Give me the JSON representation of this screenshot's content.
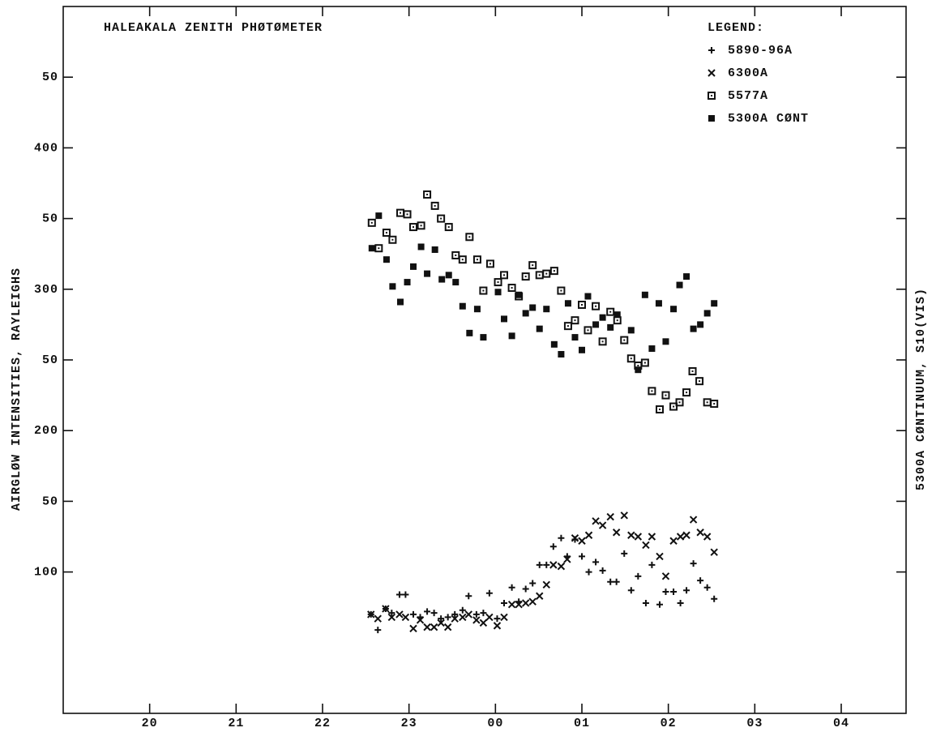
{
  "chart_data": {
    "type": "scatter",
    "title": "HALEAKALA ZENITH PHØTØMETER",
    "y_label": "AIRGLØW INTENSITIES, RAYLEIGHS",
    "y2_label": "5300A CØNTINUUM, S10(VIS)",
    "legend_title": "LEGEND:",
    "legend": "top-right",
    "xlim": [
      19,
      28.75
    ],
    "ylim": [
      0,
      500
    ],
    "xticks": [
      20,
      21,
      22,
      23,
      {
        "value": 24,
        "label": "00"
      },
      {
        "value": 25,
        "label": "01"
      },
      {
        "value": 26,
        "label": "02"
      },
      {
        "value": 27,
        "label": "03"
      },
      {
        "value": 28,
        "label": "04"
      }
    ],
    "yticks": [
      100,
      {
        "value": 150,
        "label": "50"
      },
      200,
      {
        "value": 250,
        "label": "50"
      },
      300,
      {
        "value": 350,
        "label": "50"
      },
      400,
      {
        "value": 450,
        "label": "50"
      }
    ],
    "series": [
      {
        "name": "5890-96A",
        "color": "#111111",
        "marker": "plus",
        "x": [
          22.56,
          22.64,
          22.73,
          22.8,
          22.89,
          22.96,
          23.05,
          23.13,
          23.21,
          23.29,
          23.37,
          23.45,
          23.53,
          23.62,
          23.69,
          23.78,
          23.86,
          23.93,
          24.02,
          24.1,
          24.19,
          24.27,
          24.35,
          24.43,
          24.51,
          24.59,
          24.67,
          24.76,
          24.83,
          24.92,
          25.0,
          25.08,
          25.16,
          25.24,
          25.33,
          25.4,
          25.49,
          25.57,
          25.65,
          25.74,
          25.81,
          25.9,
          25.97,
          26.06,
          26.14,
          26.21,
          26.29,
          26.37,
          26.45,
          26.53
        ],
        "values": [
          70,
          59,
          74,
          71,
          84,
          84,
          70,
          68,
          72,
          71,
          67,
          68,
          70,
          73,
          83,
          70,
          71,
          85,
          67,
          78,
          89,
          79,
          88,
          92,
          105,
          105,
          118,
          124,
          111,
          123,
          111,
          100,
          107,
          101,
          93,
          93,
          113,
          87,
          97,
          78,
          105,
          77,
          86,
          86,
          78,
          87,
          106,
          94,
          89,
          81
        ]
      },
      {
        "name": "6300A",
        "color": "#111111",
        "marker": "cross",
        "x": [
          22.56,
          22.64,
          22.73,
          22.8,
          22.89,
          22.96,
          23.05,
          23.13,
          23.21,
          23.29,
          23.37,
          23.45,
          23.53,
          23.62,
          23.69,
          23.78,
          23.86,
          23.93,
          24.02,
          24.1,
          24.19,
          24.27,
          24.35,
          24.43,
          24.51,
          24.59,
          24.67,
          24.76,
          24.83,
          24.92,
          25.0,
          25.08,
          25.16,
          25.24,
          25.33,
          25.4,
          25.49,
          25.57,
          25.65,
          25.74,
          25.81,
          25.9,
          25.97,
          26.06,
          26.14,
          26.21,
          26.29,
          26.37,
          26.45,
          26.53
        ],
        "values": [
          70,
          67,
          74,
          68,
          70,
          68,
          60,
          66,
          61,
          61,
          64,
          61,
          67,
          68,
          70,
          66,
          64,
          68,
          62,
          68,
          77,
          77,
          78,
          79,
          83,
          91,
          105,
          104,
          109,
          124,
          122,
          126,
          136,
          133,
          139,
          128,
          140,
          126,
          125,
          119,
          125,
          111,
          97,
          122,
          125,
          126,
          137,
          128,
          125,
          114
        ]
      },
      {
        "name": "5577A",
        "color": "#111111",
        "marker": "square-open",
        "x": [
          22.57,
          22.65,
          22.74,
          22.81,
          22.9,
          22.98,
          23.05,
          23.14,
          23.21,
          23.3,
          23.37,
          23.46,
          23.54,
          23.62,
          23.7,
          23.79,
          23.86,
          23.94,
          24.03,
          24.1,
          24.19,
          24.27,
          24.35,
          24.43,
          24.51,
          24.59,
          24.68,
          24.76,
          24.84,
          24.92,
          25.0,
          25.07,
          25.16,
          25.24,
          25.33,
          25.41,
          25.49,
          25.57,
          25.65,
          25.73,
          25.81,
          25.9,
          25.97,
          26.06,
          26.13,
          26.21,
          26.28,
          26.36,
          26.45,
          26.53
        ],
        "values": [
          347,
          329,
          340,
          335,
          354,
          353,
          344,
          345,
          367,
          359,
          350,
          344,
          324,
          321,
          337,
          321,
          299,
          318,
          305,
          310,
          301,
          295,
          309,
          317,
          310,
          311,
          313,
          299,
          274,
          278,
          289,
          271,
          288,
          263,
          284,
          278,
          264,
          251,
          246,
          248,
          228,
          215,
          225,
          217,
          220,
          227,
          242,
          235,
          220,
          219
        ]
      },
      {
        "name": "5300A CØNT",
        "color": "#111111",
        "marker": "square",
        "x": [
          22.57,
          22.65,
          22.74,
          22.81,
          22.9,
          22.98,
          23.05,
          23.14,
          23.21,
          23.3,
          23.38,
          23.46,
          23.54,
          23.62,
          23.7,
          23.79,
          23.86,
          24.03,
          24.1,
          24.19,
          24.27,
          24.35,
          24.43,
          24.51,
          24.59,
          24.68,
          24.76,
          24.84,
          24.92,
          25.0,
          25.07,
          25.16,
          25.24,
          25.33,
          25.41,
          25.57,
          25.65,
          25.73,
          25.81,
          25.89,
          25.97,
          26.06,
          26.13,
          26.21,
          26.29,
          26.37,
          26.45,
          26.53
        ],
        "values": [
          329,
          352,
          321,
          302,
          291,
          305,
          316,
          330,
          311,
          328,
          307,
          310,
          305,
          288,
          269,
          286,
          266,
          298,
          279,
          267,
          296,
          283,
          287,
          272,
          286,
          261,
          254,
          290,
          266,
          257,
          295,
          275,
          280,
          273,
          282,
          271,
          243,
          296,
          258,
          290,
          263,
          286,
          303,
          309,
          272,
          275,
          283,
          290
        ]
      }
    ]
  }
}
